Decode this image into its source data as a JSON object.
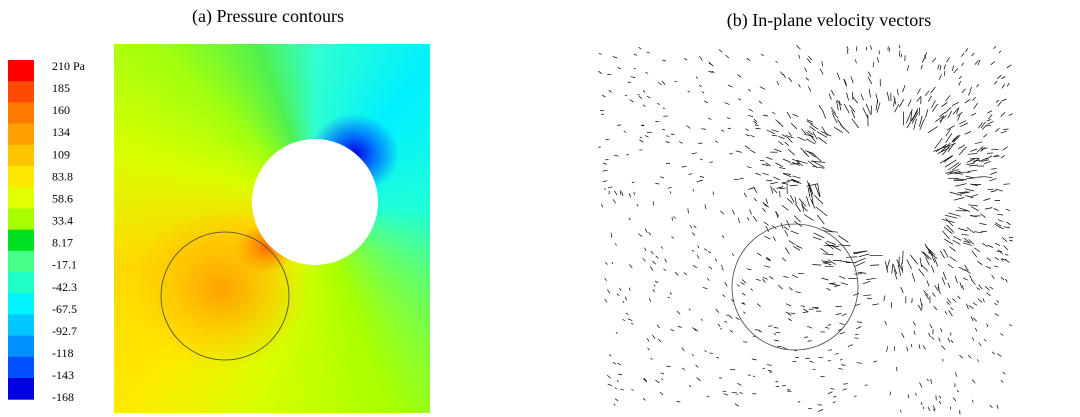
{
  "panels": [
    {
      "title": "(a) Pressure contours",
      "colorbar": {
        "labels": [
          "210 Pa",
          "185",
          "160",
          "134",
          "109",
          "83.8",
          "58.6",
          "33.4",
          "8.17",
          "-17.1",
          "-42.3",
          "-67.5",
          "-92.7",
          "-118",
          "-143",
          "-168"
        ],
        "colors": [
          "#ff0000",
          "#ff4a00",
          "#ff7a00",
          "#ffa000",
          "#ffc400",
          "#ffe800",
          "#e2ff00",
          "#a8ff00",
          "#00e020",
          "#44ff88",
          "#20ffc8",
          "#00f4ff",
          "#00c8ff",
          "#0090ff",
          "#0050ff",
          "#0000e0"
        ]
      }
    },
    {
      "title": "(b) In-plane velocity vectors"
    }
  ]
}
